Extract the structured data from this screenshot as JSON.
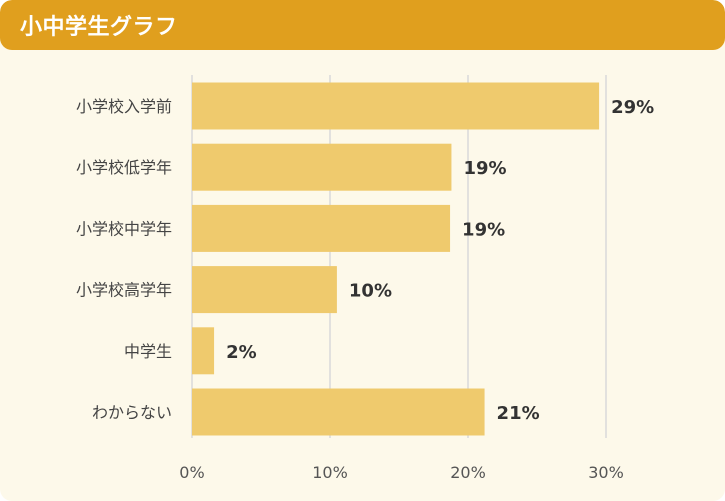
{
  "header": {
    "title": "小中学生グラフ"
  },
  "colors": {
    "header_bg": "#e09f1e",
    "panel_bg": "#fdf9ea",
    "bar": "#efca6d",
    "grid": "#d9d9d9"
  },
  "chart_data": {
    "type": "bar",
    "orientation": "horizontal",
    "categories": [
      "小学校入学前",
      "小学校低学年",
      "小学校中学年",
      "小学校高学年",
      "中学生",
      "わからない"
    ],
    "values": [
      29.5,
      18.8,
      18.7,
      10.5,
      1.6,
      21.2
    ],
    "value_labels": [
      "29%",
      "19%",
      "19%",
      "10%",
      "2%",
      "21%"
    ],
    "xlim": [
      0,
      30
    ],
    "xticks": [
      0,
      10,
      20,
      30
    ],
    "xtick_labels": [
      "0%",
      "10%",
      "20%",
      "30%"
    ],
    "grid": true,
    "legend": false
  }
}
